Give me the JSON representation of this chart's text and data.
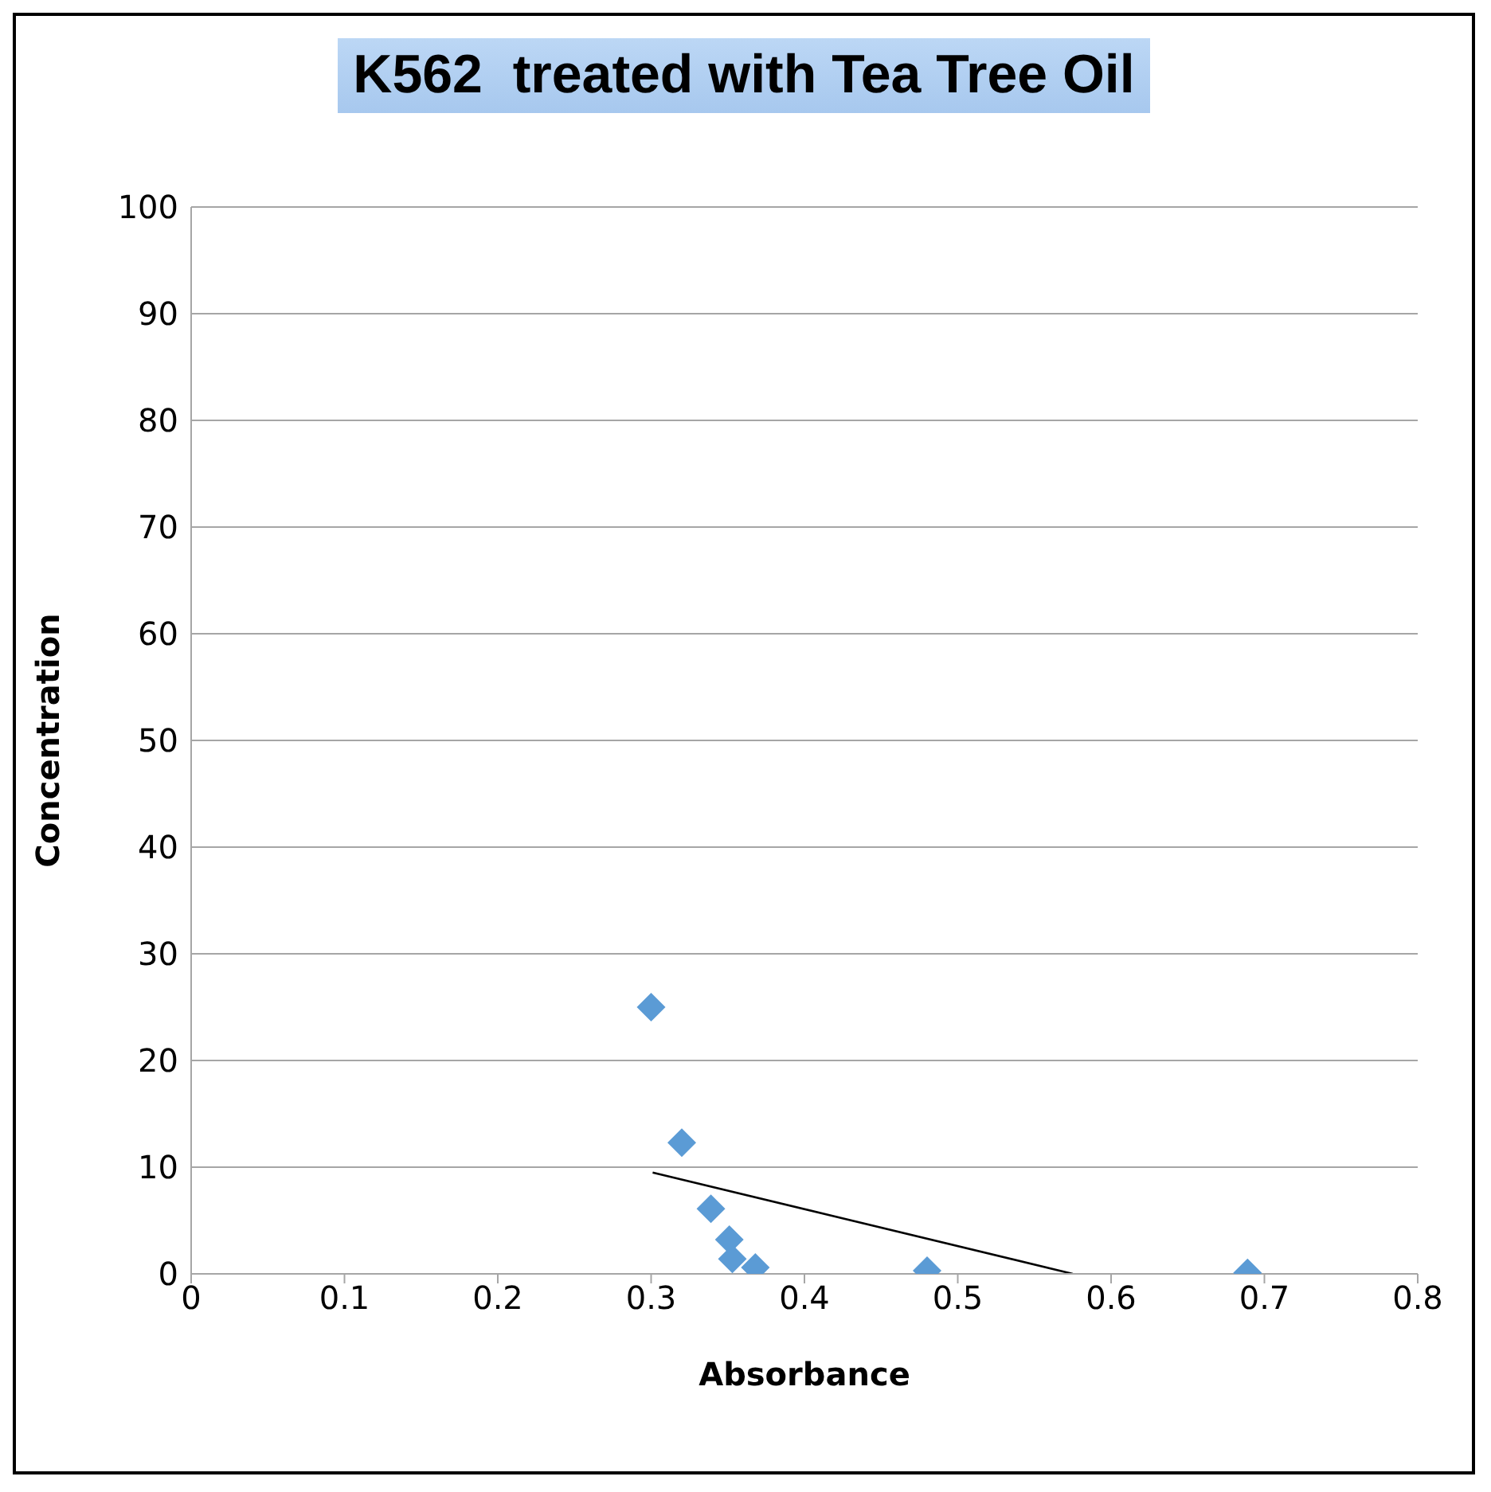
{
  "chart_data": {
    "type": "scatter",
    "title": "K562  treated with Tea Tree Oil",
    "xlabel": "Absorbance",
    "ylabel": "Concentration",
    "series": [
      {
        "color": "#5b9bd5",
        "marker": "diamond",
        "x": [
          0.3,
          0.32,
          0.339,
          0.351,
          0.353,
          0.368,
          0.48,
          0.689
        ],
        "values": [
          25,
          12.3,
          6.1,
          3.2,
          1.4,
          0.6,
          0.3,
          0.1
        ]
      },
      {
        "type": "line",
        "color": "#000000",
        "marker": "none",
        "line_style": "solid",
        "x": [
          0.301,
          0.575
        ],
        "values": [
          9.5,
          0
        ]
      }
    ],
    "xlim": [
      0,
      0.8
    ],
    "xticks": [
      0,
      0.1,
      0.2,
      0.3,
      0.4,
      0.5,
      0.6,
      0.7,
      0.8
    ],
    "ylim": [
      0,
      100
    ],
    "yticks": [
      0,
      10,
      20,
      30,
      40,
      50,
      60,
      70,
      80,
      90,
      100
    ],
    "grid": "y"
  }
}
